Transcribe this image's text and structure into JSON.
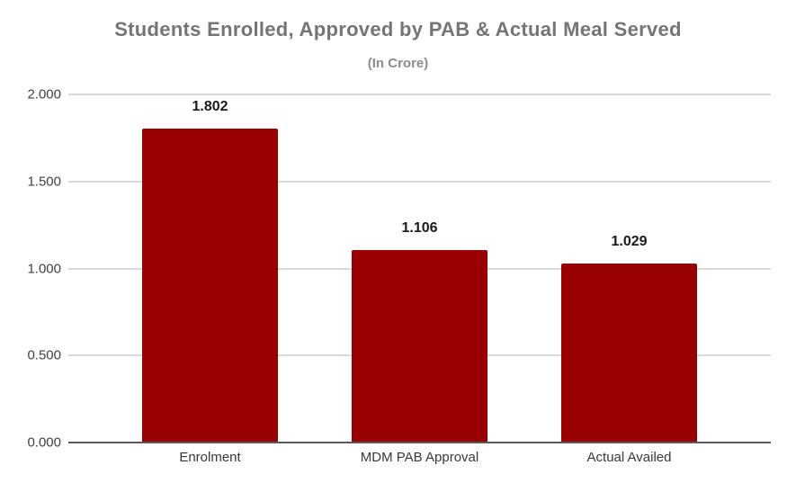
{
  "chart_data": {
    "type": "bar",
    "title": "Students Enrolled, Approved by PAB & Actual Meal Served",
    "subtitle": "(In Crore)",
    "categories": [
      "Enrolment",
      "MDM PAB Approval",
      "Actual Availed"
    ],
    "values": [
      1.802,
      1.106,
      1.029
    ],
    "value_labels": [
      "1.802",
      "1.106",
      "1.029"
    ],
    "y_ticks": [
      "0.000",
      "0.500",
      "1.000",
      "1.500",
      "2.000"
    ],
    "ylim": [
      0,
      2
    ],
    "xlabel": "",
    "ylabel": "",
    "grid": true,
    "legend": "none",
    "colors": {
      "bar": "#990000",
      "gridline": "#d9d9d9",
      "baseline": "#595959",
      "title": "#757575",
      "subtitle": "#8c8c8c",
      "tick_label": "#404040",
      "value_label": "#1a1a1a",
      "category_label": "#383838"
    }
  }
}
